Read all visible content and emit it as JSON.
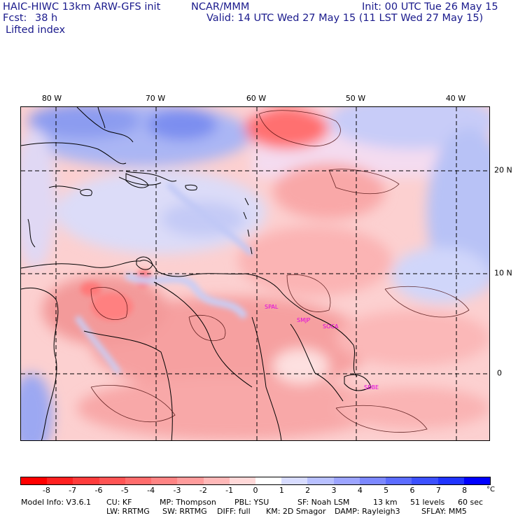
{
  "header": {
    "model_title": "HAIC-HIWC 13km ARW-GFS init",
    "org": "NCAR/MMM",
    "init": "Init: 00 UTC Tue 26 May 15",
    "fcst_label": "Fcst:",
    "fcst_value": "38 h",
    "valid": "Valid: 14 UTC Wed 27 May 15 (11 LST Wed 27 May 15)",
    "field": "Lifted index"
  },
  "map": {
    "lon_labels": [
      "80 W",
      "70 W",
      "60 W",
      "50 W",
      "40 W"
    ],
    "lat_labels": [
      "20 N",
      "10 N",
      "0"
    ],
    "stations": [
      "SPAL",
      "SMJP",
      "SOCA",
      "SBBE"
    ]
  },
  "colorbar": {
    "ticks": [
      "-8",
      "-7",
      "-6",
      "-5",
      "-4",
      "-3",
      "-2",
      "-1",
      "0",
      "1",
      "2",
      "3",
      "4",
      "5",
      "6",
      "7",
      "8"
    ],
    "unit": "°C",
    "colors": [
      "#ff0000",
      "#ff2020",
      "#ff3c3c",
      "#ff5454",
      "#ff6c6c",
      "#ff8484",
      "#ff9c9c",
      "#ffb8b8",
      "#ffd8d8",
      "#ffffff",
      "#d8dcff",
      "#b8c0ff",
      "#9ca4ff",
      "#7c88ff",
      "#5c6cff",
      "#3c50ff",
      "#2034ff",
      "#0000ff"
    ]
  },
  "footer": {
    "line1": [
      "Model Info: V3.6.1",
      "CU: KF",
      "MP: Thompson",
      "PBL: YSU",
      "SF: Noah LSM",
      "13 km",
      "51 levels",
      "60 sec"
    ],
    "line2": [
      "LW: RRTMG",
      "SW: RRTMG",
      "DIFF: full",
      "KM: 2D Smagor",
      "DAMP: Rayleigh3",
      "SFLAY: MM5"
    ]
  }
}
